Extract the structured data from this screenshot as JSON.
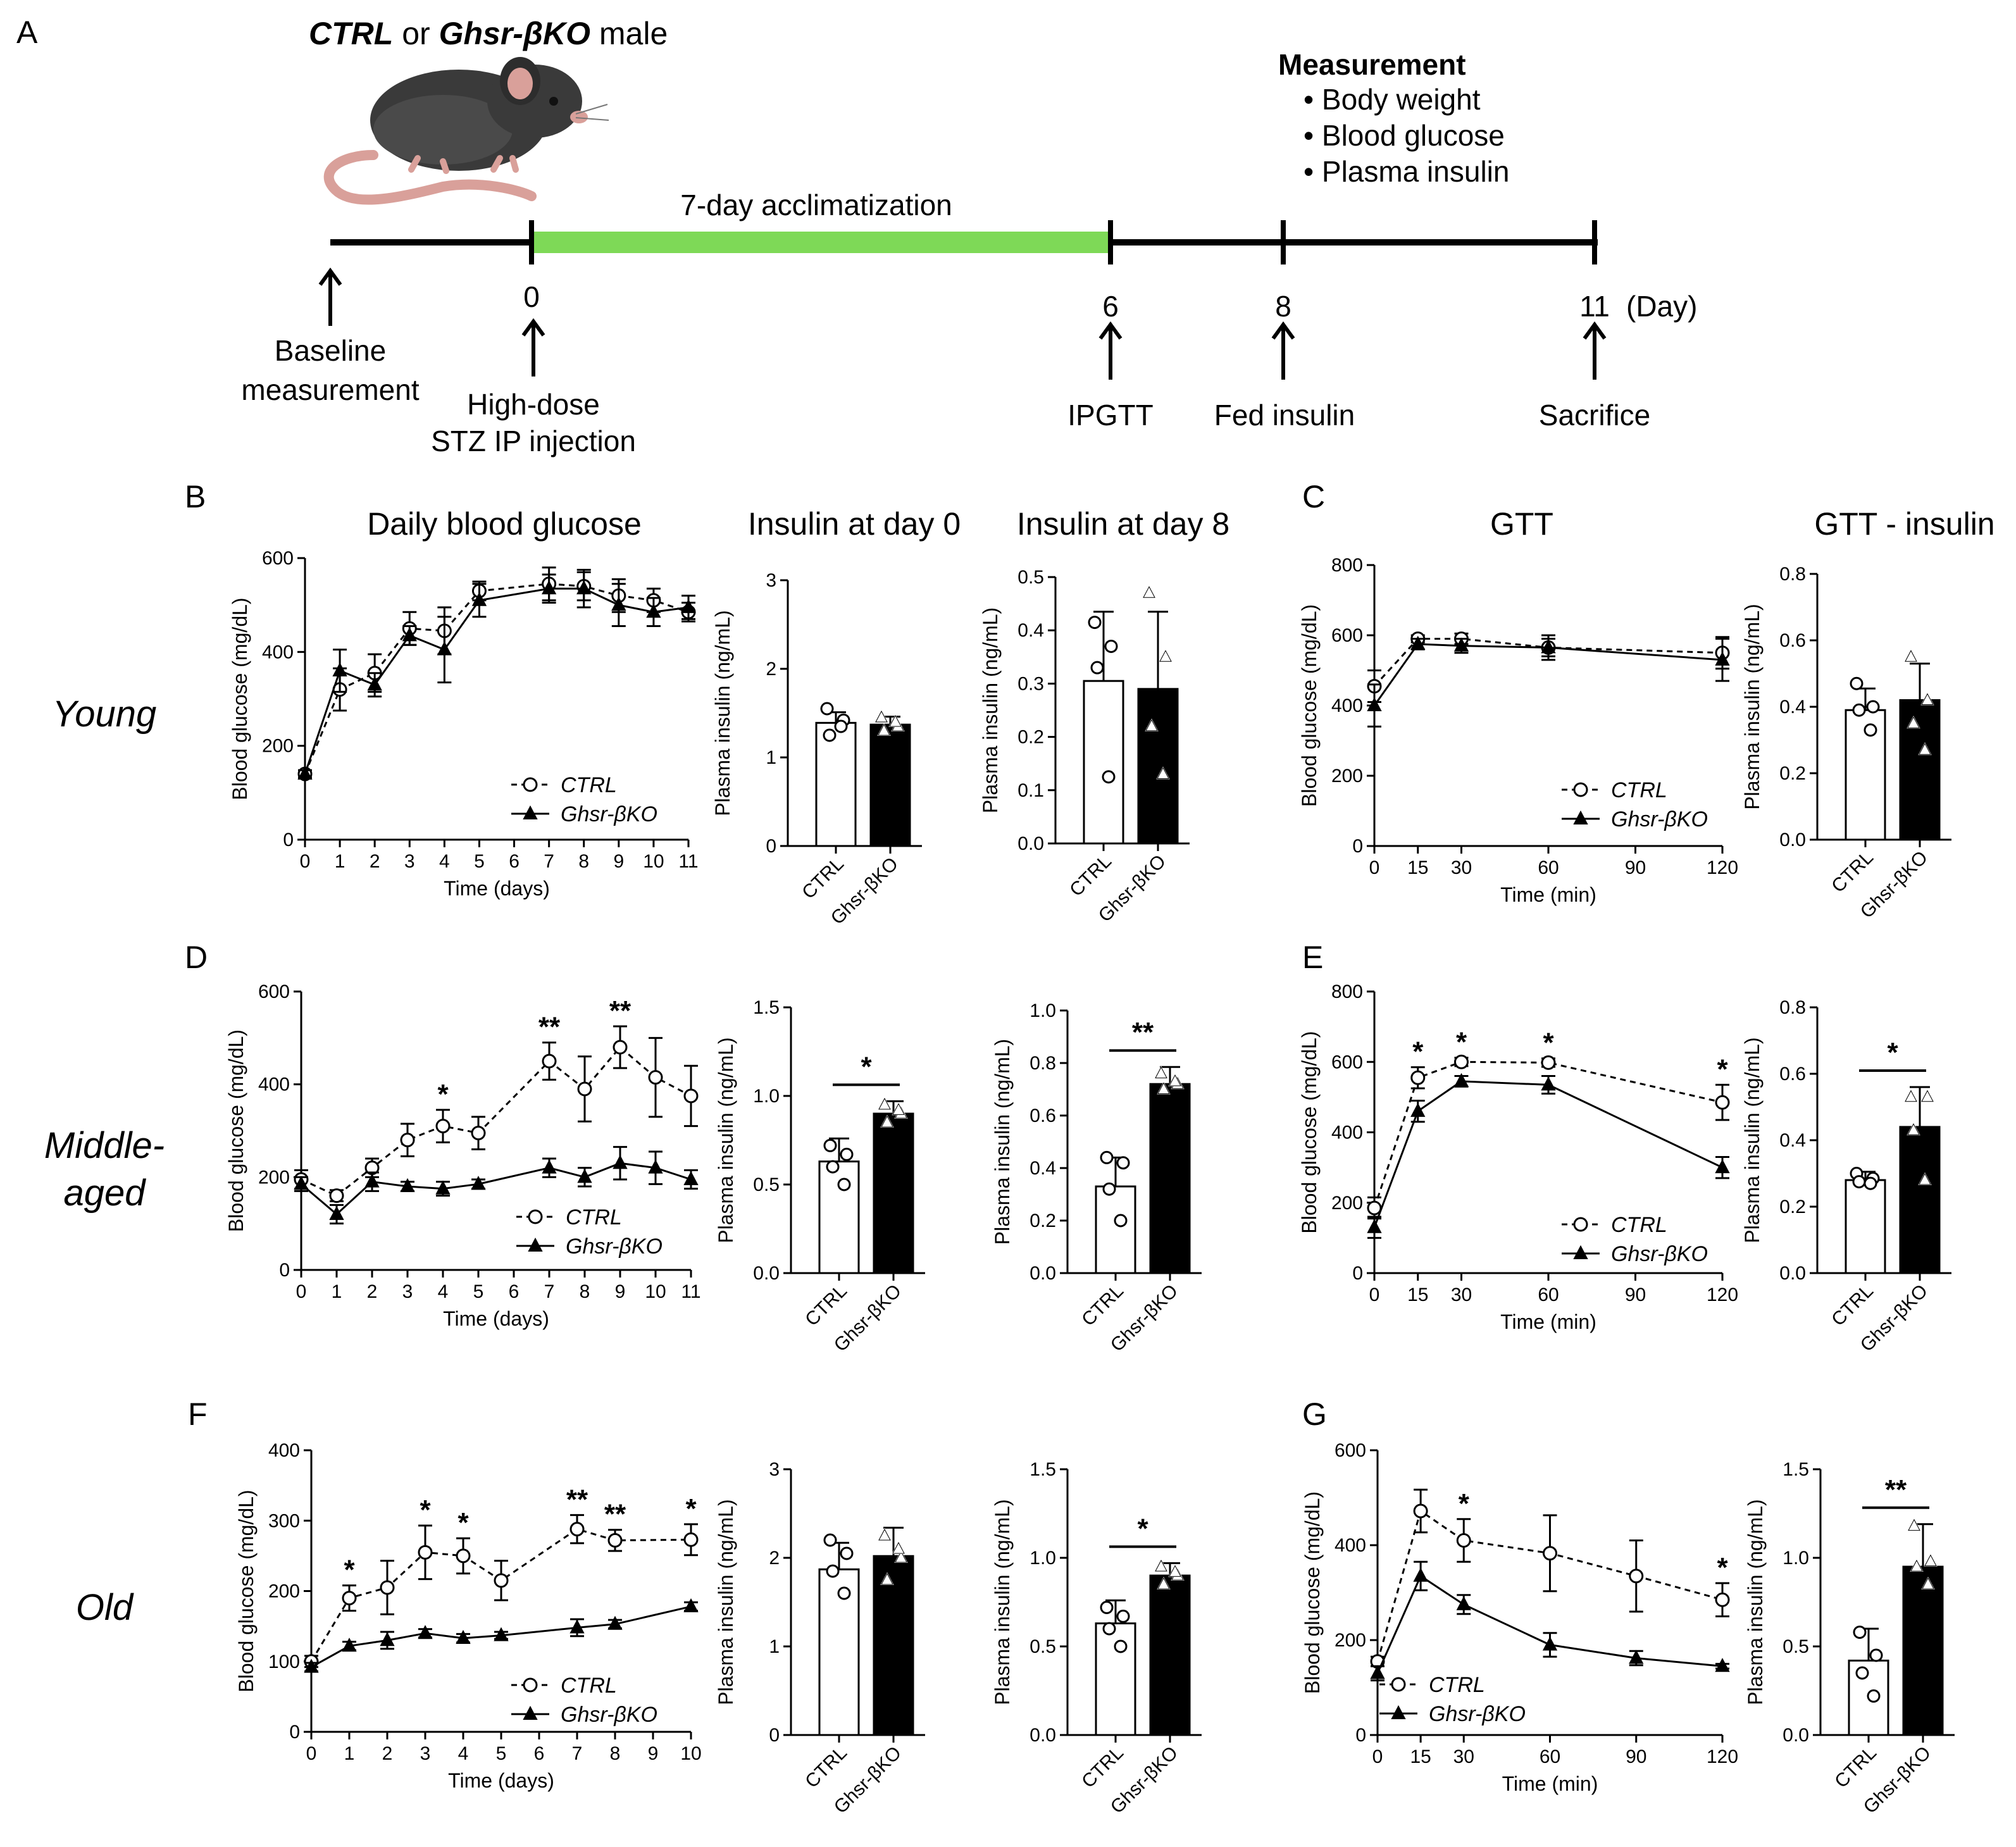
{
  "header": {
    "panel_label": "A",
    "cohort_title": {
      "ctrl": "CTRL",
      "or": "or",
      "ko": "Ghsr-βKO",
      "male": "male"
    }
  },
  "timeline": {
    "acclimatization": "7-day acclimatization",
    "measurement_title": "Measurement",
    "measurement_items": [
      "Body weight",
      "Blood glucose",
      "Plasma insulin"
    ],
    "day_unit": "(Day)",
    "days": [
      "0",
      "6",
      "8",
      "11"
    ],
    "events": {
      "baseline_1": "Baseline",
      "baseline_2": "measurement",
      "stz_1": "High-dose",
      "stz_2": "STZ IP injection",
      "ipgtt": "IPGTT",
      "fed_insulin": "Fed insulin",
      "sacrifice": "Sacrifice"
    },
    "colors": {
      "accl_bar": "#7ed957",
      "mouse_body": "#3a3a3a",
      "mouse_pink": "#d9a09a"
    }
  },
  "panel_titles": {
    "daily": "Daily blood glucose",
    "ins0": "Insulin at day 0",
    "ins8": "Insulin at day 8",
    "gtt": "GTT",
    "gttins": "GTT - insulin"
  },
  "row_labels": {
    "young": "Young",
    "middle_1": "Middle-",
    "middle_2": "aged",
    "old": "Old"
  },
  "panel_letters": {
    "B": "B",
    "C": "C",
    "D": "D",
    "E": "E",
    "F": "F",
    "G": "G"
  },
  "legend": {
    "ctrl": "CTRL",
    "ko": "Ghsr-βKO"
  },
  "chart_data": [
    {
      "id": "B_glucose",
      "type": "line",
      "xlabel": "Time (days)",
      "ylabel": "Blood glucose (mg/dL)",
      "ylim": [
        0,
        600
      ],
      "yticks": [
        0,
        200,
        400,
        600
      ],
      "xticks": [
        0,
        1,
        2,
        3,
        4,
        5,
        6,
        7,
        8,
        9,
        10,
        11
      ],
      "x": [
        0,
        1,
        2,
        3,
        4,
        5,
        7,
        8,
        9,
        10,
        11
      ],
      "series": [
        {
          "name": "CTRL",
          "values": [
            140,
            320,
            355,
            450,
            445,
            530,
            545,
            540,
            520,
            510,
            485
          ],
          "err": [
            8,
            45,
            40,
            35,
            50,
            20,
            35,
            30,
            35,
            25,
            20
          ]
        },
        {
          "name": "Ghsr-βKO",
          "values": [
            140,
            360,
            330,
            435,
            405,
            510,
            535,
            535,
            500,
            485,
            495
          ],
          "err": [
            8,
            45,
            25,
            20,
            70,
            35,
            30,
            40,
            45,
            30,
            25
          ]
        }
      ],
      "stars": []
    },
    {
      "id": "B_ins0",
      "type": "bar",
      "ylabel": "Plasma insulin (ng/mL)",
      "ylim": [
        0,
        3
      ],
      "yticks": [
        0,
        1,
        2,
        3
      ],
      "categories": [
        "CTRL",
        "Ghsr-βKO"
      ],
      "values": [
        1.39,
        1.37
      ],
      "err": [
        0.12,
        0.09
      ],
      "points": [
        [
          1.55,
          1.42,
          1.25,
          1.35
        ],
        [
          1.45,
          1.35,
          1.3,
          1.4
        ]
      ],
      "star": ""
    },
    {
      "id": "B_ins8",
      "type": "bar",
      "ylabel": "Plasma insulin (ng/mL)",
      "ylim": [
        0,
        0.5
      ],
      "yticks": [
        0.0,
        0.1,
        0.2,
        0.3,
        0.4,
        0.5
      ],
      "categories": [
        "CTRL",
        "Ghsr-βKO"
      ],
      "values": [
        0.305,
        0.29
      ],
      "err": [
        0.13,
        0.145
      ],
      "points": [
        [
          0.415,
          0.37,
          0.33,
          0.125
        ],
        [
          0.47,
          0.35,
          0.22,
          0.13
        ]
      ],
      "star": ""
    },
    {
      "id": "C_gtt",
      "type": "line",
      "xlabel": "Time (min)",
      "ylabel": "Blood glucose (mg/dL)",
      "ylim": [
        0,
        800
      ],
      "yticks": [
        0,
        200,
        400,
        600,
        800
      ],
      "xlim": [
        0,
        120
      ],
      "xticks": [
        0,
        15,
        30,
        60,
        90,
        120
      ],
      "x": [
        0,
        15,
        30,
        60,
        120
      ],
      "series": [
        {
          "name": "CTRL",
          "values": [
            455,
            590,
            590,
            565,
            550
          ],
          "err": [
            45,
            10,
            15,
            35,
            45
          ]
        },
        {
          "name": "Ghsr-βKO",
          "values": [
            400,
            575,
            570,
            565,
            530
          ],
          "err": [
            60,
            15,
            20,
            25,
            60
          ]
        }
      ],
      "stars": []
    },
    {
      "id": "C_gttins",
      "type": "bar",
      "ylabel": "Plasma insulin (ng/mL)",
      "ylim": [
        0,
        0.8
      ],
      "yticks": [
        0.0,
        0.2,
        0.4,
        0.6,
        0.8
      ],
      "categories": [
        "CTRL",
        "Ghsr-βKO"
      ],
      "values": [
        0.39,
        0.42
      ],
      "err": [
        0.065,
        0.11
      ],
      "points": [
        [
          0.47,
          0.4,
          0.39,
          0.33
        ],
        [
          0.55,
          0.42,
          0.35,
          0.27
        ]
      ],
      "star": ""
    },
    {
      "id": "D_glucose",
      "type": "line",
      "xlabel": "Time (days)",
      "ylabel": "Blood glucose (mg/dL)",
      "ylim": [
        0,
        600
      ],
      "yticks": [
        0,
        200,
        400,
        600
      ],
      "xticks": [
        0,
        1,
        2,
        3,
        4,
        5,
        6,
        7,
        8,
        9,
        10,
        11
      ],
      "x": [
        0,
        1,
        2,
        3,
        4,
        5,
        7,
        8,
        9,
        10,
        11
      ],
      "series": [
        {
          "name": "CTRL",
          "values": [
            195,
            160,
            220,
            280,
            310,
            295,
            450,
            390,
            480,
            415,
            375
          ],
          "err": [
            20,
            12,
            20,
            35,
            35,
            35,
            40,
            70,
            45,
            85,
            65
          ]
        },
        {
          "name": "Ghsr-βKO",
          "values": [
            185,
            120,
            190,
            180,
            175,
            185,
            220,
            200,
            230,
            220,
            195
          ],
          "err": [
            15,
            20,
            20,
            10,
            15,
            10,
            20,
            20,
            35,
            35,
            20
          ]
        }
      ],
      "stars": [
        {
          "x": 4,
          "label": "*"
        },
        {
          "x": 7,
          "label": "**"
        },
        {
          "x": 9,
          "label": "**"
        }
      ]
    },
    {
      "id": "D_ins0",
      "type": "bar",
      "ylabel": "Plasma insulin (ng/mL)",
      "ylim": [
        0,
        1.5
      ],
      "yticks": [
        0.0,
        0.5,
        1.0,
        1.5
      ],
      "categories": [
        "CTRL",
        "Ghsr-βKO"
      ],
      "values": [
        0.63,
        0.9
      ],
      "err": [
        0.13,
        0.07
      ],
      "points": [
        [
          0.72,
          0.67,
          0.6,
          0.5
        ],
        [
          0.95,
          0.9,
          0.85,
          0.92
        ]
      ],
      "star": "*"
    },
    {
      "id": "D_ins8",
      "type": "bar",
      "ylabel": "Plasma insulin (ng/mL)",
      "ylim": [
        0,
        1.0
      ],
      "yticks": [
        0.0,
        0.2,
        0.4,
        0.6,
        0.8,
        1.0
      ],
      "categories": [
        "CTRL",
        "Ghsr-βKO"
      ],
      "values": [
        0.33,
        0.72
      ],
      "err": [
        0.11,
        0.065
      ],
      "points": [
        [
          0.44,
          0.42,
          0.32,
          0.2
        ],
        [
          0.76,
          0.72,
          0.7,
          0.73
        ]
      ],
      "star": "**"
    },
    {
      "id": "E_gtt",
      "type": "line",
      "xlabel": "Time (min)",
      "ylabel": "Blood glucose (mg/dL)",
      "ylim": [
        0,
        800
      ],
      "yticks": [
        0,
        200,
        400,
        600,
        800
      ],
      "xlim": [
        0,
        120
      ],
      "xticks": [
        0,
        15,
        30,
        60,
        90,
        120
      ],
      "x": [
        0,
        15,
        30,
        60,
        120
      ],
      "series": [
        {
          "name": "CTRL",
          "values": [
            185,
            555,
            600,
            598,
            485
          ],
          "err": [
            30,
            30,
            12,
            12,
            50
          ]
        },
        {
          "name": "Ghsr-βKO",
          "values": [
            130,
            460,
            545,
            535,
            300
          ],
          "err": [
            30,
            30,
            15,
            25,
            30
          ]
        }
      ],
      "stars": [
        {
          "x": 15,
          "label": "*"
        },
        {
          "x": 30,
          "label": "*"
        },
        {
          "x": 60,
          "label": "*"
        },
        {
          "x": 120,
          "label": "*"
        }
      ]
    },
    {
      "id": "E_gttins",
      "type": "bar",
      "ylabel": "Plasma insulin (ng/mL)",
      "ylim": [
        0,
        0.8
      ],
      "yticks": [
        0.0,
        0.2,
        0.4,
        0.6,
        0.8
      ],
      "categories": [
        "CTRL",
        "Ghsr-βKO"
      ],
      "values": [
        0.28,
        0.44
      ],
      "err": [
        0.025,
        0.12
      ],
      "points": [
        [
          0.3,
          0.285,
          0.275,
          0.27
        ],
        [
          0.53,
          0.53,
          0.43,
          0.28
        ]
      ],
      "star": "*"
    },
    {
      "id": "F_glucose",
      "type": "line",
      "xlabel": "Time (days)",
      "ylabel": "Blood glucose (mg/dL)",
      "ylim": [
        0,
        400
      ],
      "yticks": [
        0,
        100,
        200,
        300,
        400
      ],
      "xticks": [
        0,
        1,
        2,
        3,
        4,
        5,
        6,
        7,
        8,
        9,
        10
      ],
      "x": [
        0,
        1,
        2,
        3,
        4,
        5,
        7,
        8,
        10
      ],
      "series": [
        {
          "name": "CTRL",
          "values": [
            100,
            190,
            205,
            255,
            250,
            215,
            288,
            272,
            273
          ],
          "err": [
            8,
            18,
            38,
            38,
            25,
            28,
            20,
            15,
            22
          ]
        },
        {
          "name": "Ghsr-βKO",
          "values": [
            92,
            122,
            130,
            140,
            133,
            137,
            148,
            153,
            178
          ],
          "err": [
            6,
            6,
            12,
            6,
            6,
            5,
            12,
            6,
            6
          ]
        }
      ],
      "stars": [
        {
          "x": 1,
          "label": "*"
        },
        {
          "x": 3,
          "label": "*"
        },
        {
          "x": 4,
          "label": "*"
        },
        {
          "x": 7,
          "label": "**"
        },
        {
          "x": 8,
          "label": "**"
        },
        {
          "x": 10,
          "label": "*"
        }
      ]
    },
    {
      "id": "F_ins0",
      "type": "bar",
      "ylabel": "Plasma insulin (ng/mL)",
      "ylim": [
        0,
        3
      ],
      "yticks": [
        0,
        1,
        2,
        3
      ],
      "categories": [
        "CTRL",
        "Ghsr-βKO"
      ],
      "values": [
        1.87,
        2.02
      ],
      "err": [
        0.3,
        0.32
      ],
      "points": [
        [
          2.2,
          2.05,
          1.85,
          1.6
        ],
        [
          2.25,
          2.0,
          1.75,
          2.1
        ]
      ],
      "star": ""
    },
    {
      "id": "F_ins8",
      "type": "bar",
      "ylabel": "Plasma insulin (ng/mL)",
      "ylim": [
        0,
        1.5
      ],
      "yticks": [
        0.0,
        0.5,
        1.0,
        1.5
      ],
      "categories": [
        "CTRL",
        "Ghsr-βKO"
      ],
      "values": [
        0.63,
        0.9
      ],
      "err": [
        0.13,
        0.07
      ],
      "points": [
        [
          0.72,
          0.67,
          0.6,
          0.5
        ],
        [
          0.95,
          0.9,
          0.85,
          0.92
        ]
      ],
      "star": "*"
    },
    {
      "id": "G_gtt",
      "type": "line",
      "xlabel": "Time (min)",
      "ylabel": "Blood glucose (mg/dL)",
      "ylim": [
        0,
        600
      ],
      "yticks": [
        0,
        200,
        400,
        600
      ],
      "xlim": [
        0,
        120
      ],
      "xticks": [
        0,
        15,
        30,
        60,
        90,
        120
      ],
      "x": [
        0,
        15,
        30,
        60,
        90,
        120
      ],
      "series": [
        {
          "name": "CTRL",
          "values": [
            155,
            472,
            410,
            383,
            335,
            285
          ],
          "err": [
            10,
            45,
            45,
            80,
            75,
            35
          ]
        },
        {
          "name": "Ghsr-βKO",
          "values": [
            130,
            335,
            275,
            190,
            162,
            145
          ],
          "err": [
            15,
            30,
            20,
            25,
            15,
            5
          ]
        }
      ],
      "stars": [
        {
          "x": 30,
          "label": "*"
        },
        {
          "x": 120,
          "label": "*"
        }
      ]
    },
    {
      "id": "G_gttins",
      "type": "bar",
      "ylabel": "Plasma insulin (ng/mL)",
      "ylim": [
        0,
        1.5
      ],
      "yticks": [
        0.0,
        0.5,
        1.0,
        1.5
      ],
      "categories": [
        "CTRL",
        "Ghsr-βKO"
      ],
      "values": [
        0.42,
        0.95
      ],
      "err": [
        0.18,
        0.24
      ],
      "points": [
        [
          0.58,
          0.45,
          0.35,
          0.22
        ],
        [
          1.18,
          0.98,
          0.95,
          0.85
        ]
      ],
      "star": "**"
    }
  ]
}
